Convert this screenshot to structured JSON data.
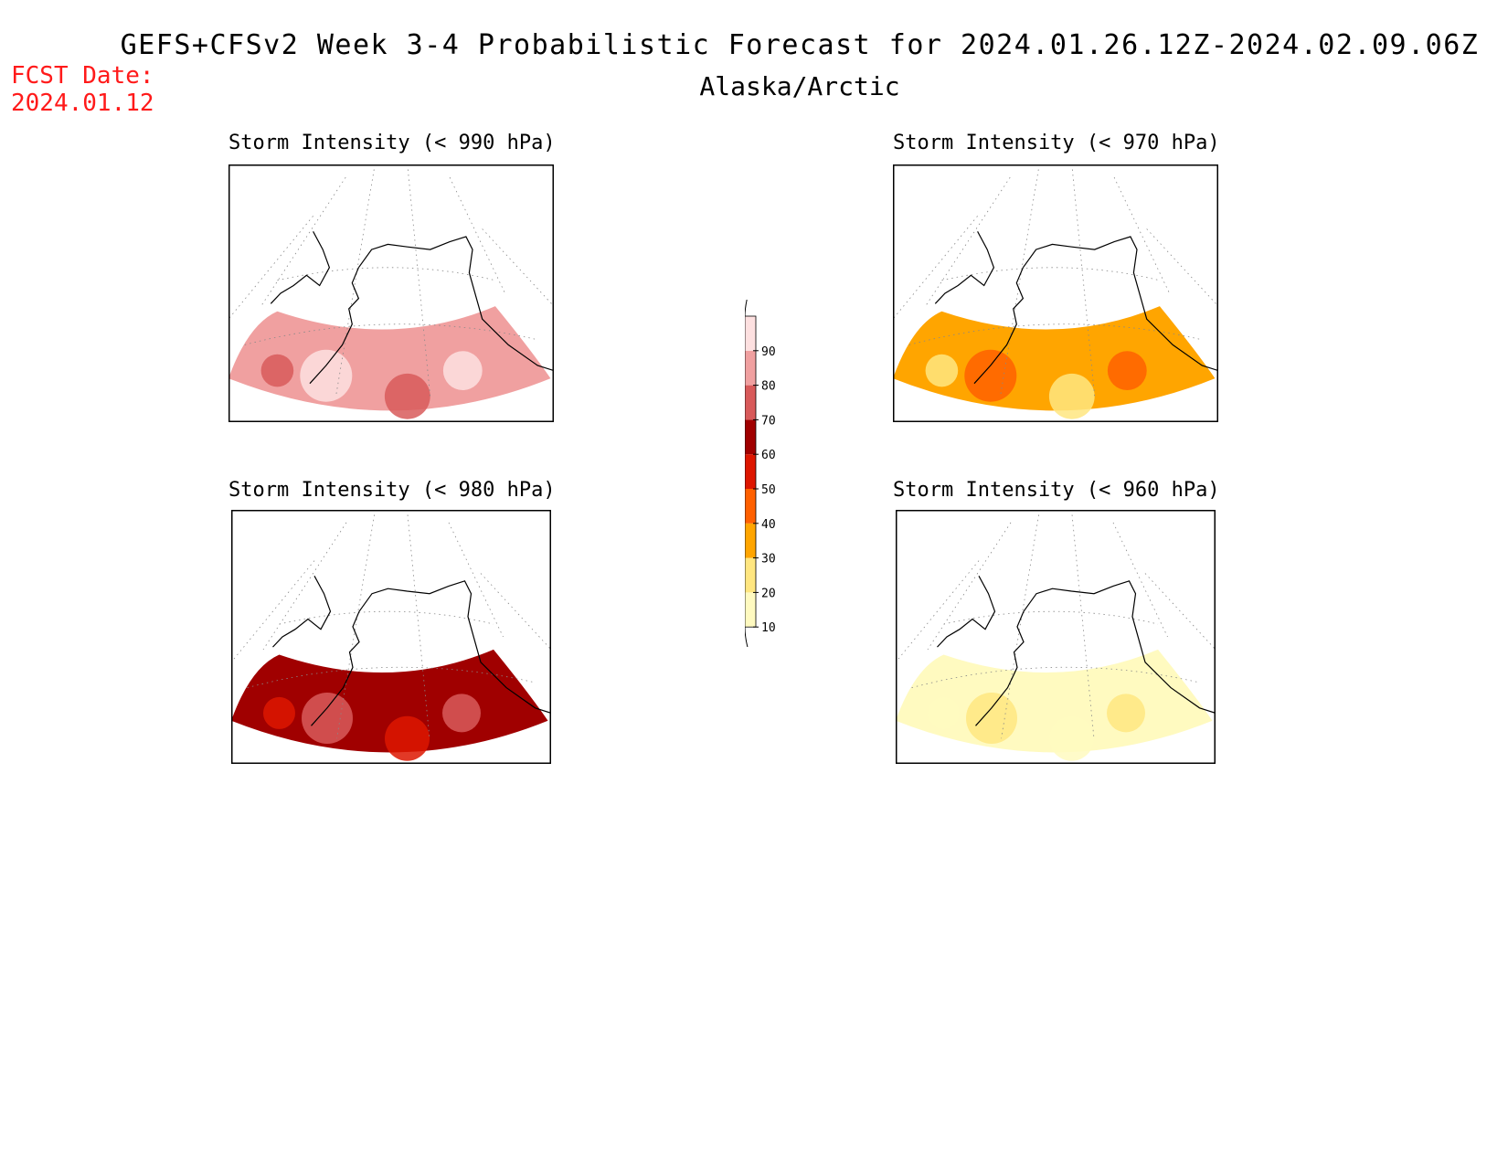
{
  "title": "GEFS+CFSv2 Week 3-4 Probabilistic Forecast for 2024.01.26.12Z-2024.02.09.06Z",
  "subtitle": "Alaska/Arctic",
  "fcst_date": {
    "label": "FCST Date:",
    "value": "2024.01.12"
  },
  "panels": [
    {
      "id": "p990",
      "title": "Storm Intensity (< 990 hPa)",
      "threshold_hPa": 990,
      "dominant_probability_pct": 80
    },
    {
      "id": "p970",
      "title": "Storm Intensity (< 970 hPa)",
      "threshold_hPa": 970,
      "dominant_probability_pct": 35
    },
    {
      "id": "p980",
      "title": "Storm Intensity (< 980 hPa)",
      "threshold_hPa": 980,
      "dominant_probability_pct": 60
    },
    {
      "id": "p960",
      "title": "Storm Intensity (< 960 hPa)",
      "threshold_hPa": 960,
      "dominant_probability_pct": 12
    }
  ],
  "colorbar": {
    "ticks": [
      "10",
      "20",
      "30",
      "40",
      "50",
      "60",
      "70",
      "80",
      "90"
    ],
    "colors": [
      "#fffac0",
      "#ffe680",
      "#ffa500",
      "#ff6000",
      "#dd1600",
      "#a00000",
      "#d85a5a",
      "#f0a0a0",
      "#fde0e0"
    ]
  }
}
